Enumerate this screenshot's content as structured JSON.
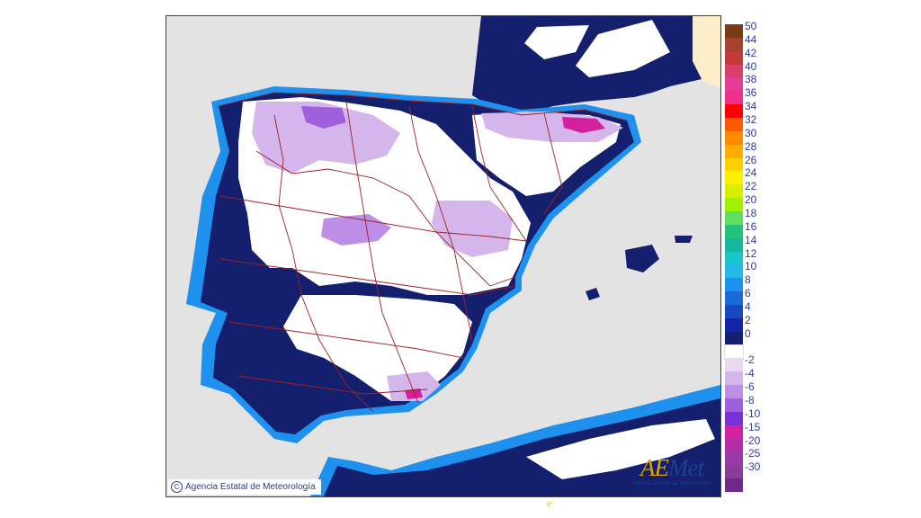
{
  "map": {
    "copyright": "Agencia Estatal de Meteorología",
    "logo": {
      "word_a": "A",
      "word_e": "E",
      "word_rest": "Met",
      "subtitle": "Agencia Estatal de Meteorología"
    }
  },
  "colors": {
    "sea": "#e3e3e3",
    "land_outside": "#fdeecb",
    "border": "#a02020"
  },
  "legend": {
    "colors": [
      "#7a3a14",
      "#a5432f",
      "#c23a3a",
      "#d8406a",
      "#e63c97",
      "#ef2f8a",
      "#ff0000",
      "#ff5a00",
      "#ff8a00",
      "#ffad00",
      "#ffcf00",
      "#ffef00",
      "#d8f000",
      "#a0f000",
      "#5ee05e",
      "#22c27a",
      "#14b8a0",
      "#18c8c8",
      "#22b8e8",
      "#1e90ee",
      "#1a6ad8",
      "#1848c0",
      "#1426a8",
      "#14206e",
      "#ffffff",
      "#e8d8f2",
      "#d4b6ec",
      "#bc8ee6",
      "#a060dc",
      "#7a32d8",
      "#d3209c",
      "#b42ca8",
      "#9a3aa8",
      "#8a3d96",
      "#6e2a86"
    ],
    "ticks": [
      "50",
      "44",
      "42",
      "40",
      "38",
      "36",
      "34",
      "32",
      "30",
      "28",
      "26",
      "24",
      "22",
      "20",
      "18",
      "16",
      "14",
      "12",
      "10",
      "8",
      "6",
      "4",
      "2",
      "0",
      "-2",
      "-4",
      "-6",
      "-8",
      "-10",
      "-15",
      "-20",
      "-25",
      "-30"
    ]
  },
  "footer_mark": "0°"
}
